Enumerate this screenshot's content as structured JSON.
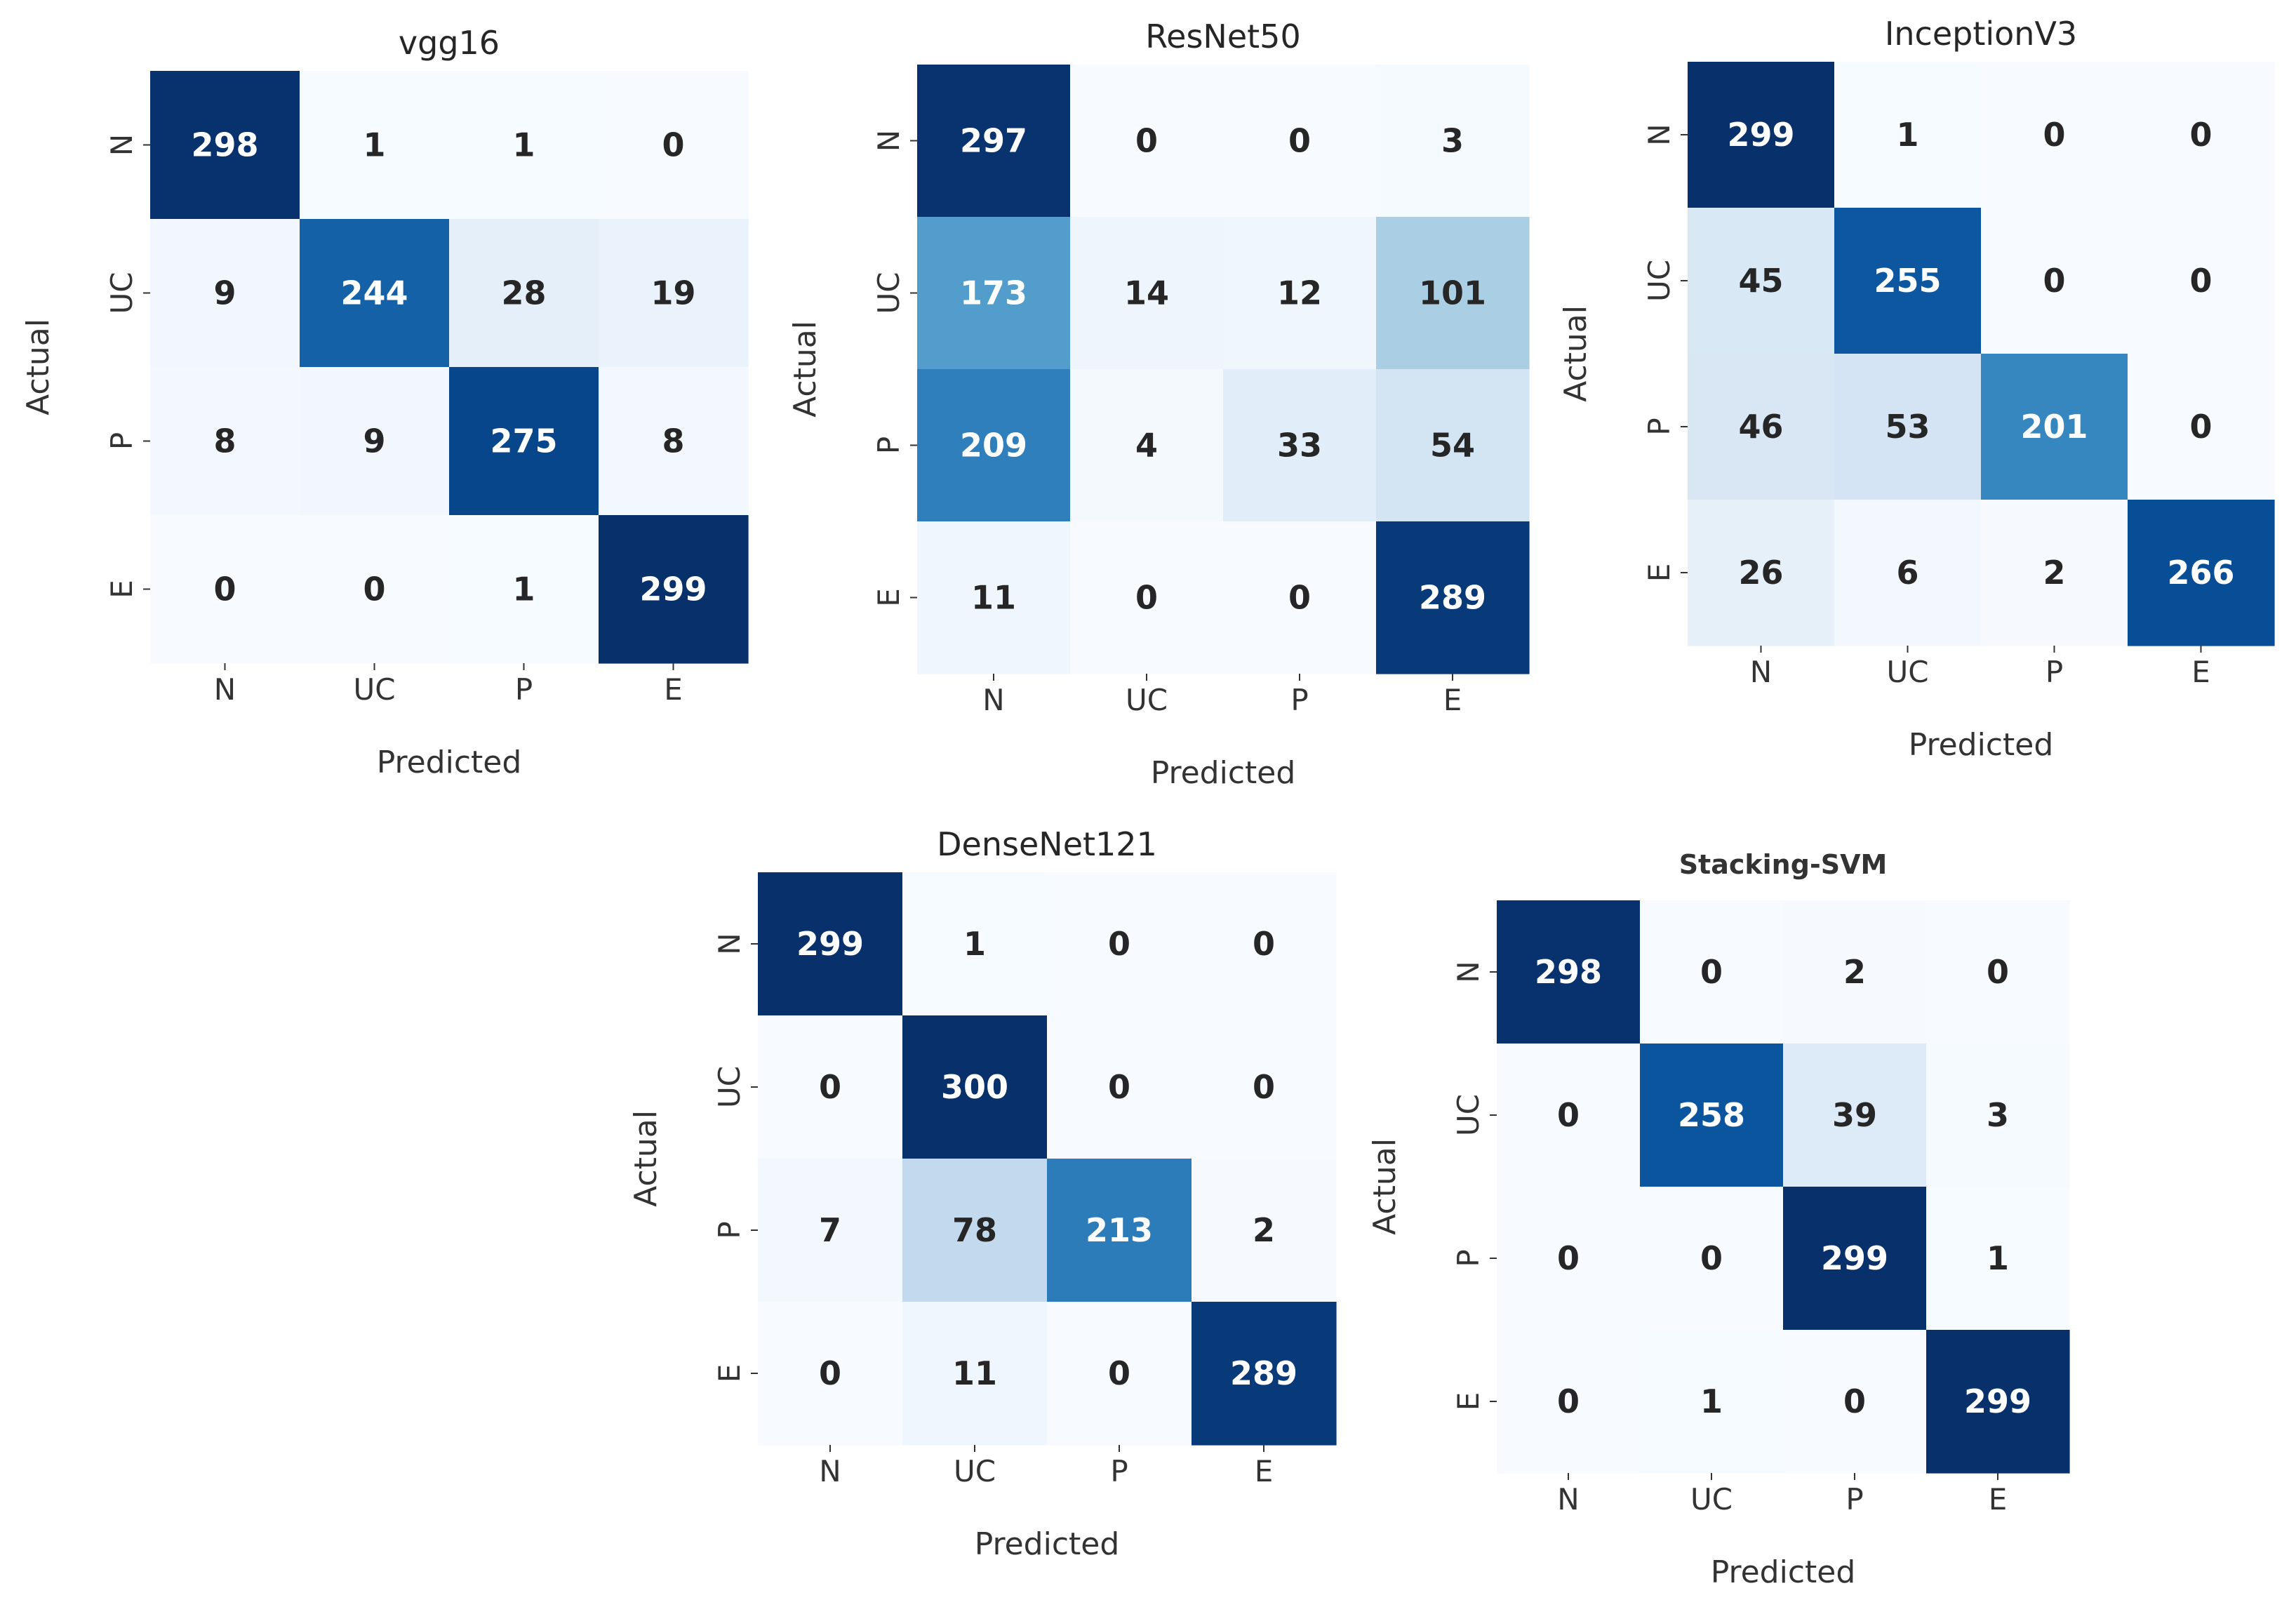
{
  "chart_data": [
    {
      "type": "heatmap",
      "title": "vgg16",
      "xlabel": "Predicted",
      "ylabel": "Actual",
      "x_categories": [
        "N",
        "UC",
        "P",
        "E"
      ],
      "y_categories": [
        "N",
        "UC",
        "P",
        "E"
      ],
      "values": [
        [
          298,
          1,
          1,
          0
        ],
        [
          9,
          244,
          28,
          19
        ],
        [
          8,
          9,
          275,
          8
        ],
        [
          0,
          0,
          1,
          299
        ]
      ],
      "colormap": "Blues",
      "vmin": 0,
      "vmax": 300,
      "colorbar": false
    },
    {
      "type": "heatmap",
      "title": "ResNet50",
      "xlabel": "Predicted",
      "ylabel": "Actual",
      "x_categories": [
        "N",
        "UC",
        "P",
        "E"
      ],
      "y_categories": [
        "N",
        "UC",
        "P",
        "E"
      ],
      "values": [
        [
          297,
          0,
          0,
          3
        ],
        [
          173,
          14,
          12,
          101
        ],
        [
          209,
          4,
          33,
          54
        ],
        [
          11,
          0,
          0,
          289
        ]
      ],
      "colormap": "Blues",
      "vmin": 0,
      "vmax": 300,
      "colorbar": false
    },
    {
      "type": "heatmap",
      "title": "InceptionV3",
      "xlabel": "Predicted",
      "ylabel": "Actual",
      "x_categories": [
        "N",
        "UC",
        "P",
        "E"
      ],
      "y_categories": [
        "N",
        "UC",
        "P",
        "E"
      ],
      "values": [
        [
          299,
          1,
          0,
          0
        ],
        [
          45,
          255,
          0,
          0
        ],
        [
          46,
          53,
          201,
          0
        ],
        [
          26,
          6,
          2,
          266
        ]
      ],
      "colormap": "Blues",
      "vmin": 0,
      "vmax": 300,
      "colorbar": false
    },
    {
      "type": "heatmap",
      "title": "DenseNet121",
      "xlabel": "Predicted",
      "ylabel": "Actual",
      "x_categories": [
        "N",
        "UC",
        "P",
        "E"
      ],
      "y_categories": [
        "N",
        "UC",
        "P",
        "E"
      ],
      "values": [
        [
          299,
          1,
          0,
          0
        ],
        [
          0,
          300,
          0,
          0
        ],
        [
          7,
          78,
          213,
          2
        ],
        [
          0,
          11,
          0,
          289
        ]
      ],
      "colormap": "Blues",
      "vmin": 0,
      "vmax": 300,
      "colorbar": false
    },
    {
      "type": "heatmap",
      "title": "Stacking-SVM",
      "xlabel": "Predicted",
      "ylabel": "Actual",
      "x_categories": [
        "N",
        "UC",
        "P",
        "E"
      ],
      "y_categories": [
        "N",
        "UC",
        "P",
        "E"
      ],
      "values": [
        [
          298,
          0,
          2,
          0
        ],
        [
          0,
          258,
          39,
          3
        ],
        [
          0,
          0,
          299,
          1
        ],
        [
          0,
          1,
          0,
          299
        ]
      ],
      "colormap": "Blues",
      "vmin": 0,
      "vmax": 300,
      "colorbar": false
    }
  ]
}
